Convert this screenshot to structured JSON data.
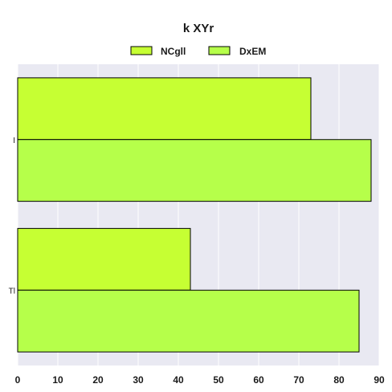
{
  "chart_data": {
    "type": "bar",
    "orientation": "horizontal",
    "title": "k XYr",
    "xlabel": "",
    "ylabel": "",
    "categories": [
      "I",
      "Tl"
    ],
    "series": [
      {
        "name": "NCgll",
        "values": [
          73,
          43
        ],
        "color": "#c6ff33"
      },
      {
        "name": "DxEM",
        "values": [
          88,
          85
        ],
        "color": "#b6ff4a"
      }
    ],
    "xlim": [
      0,
      90
    ],
    "xticks": [
      0,
      10,
      20,
      30,
      40,
      50,
      60,
      70,
      80,
      90
    ],
    "grid": true,
    "legend_position": "top-center",
    "background_color": "#e9e9f2",
    "grid_color": "#ffffff"
  }
}
